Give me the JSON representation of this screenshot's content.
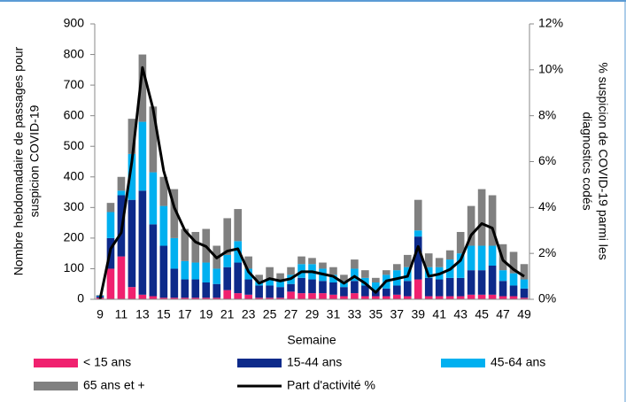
{
  "chart_data": {
    "type": "bar",
    "x_label": "Semaine",
    "y_label": [
      "Nombre hebdomadaire de passages pour",
      "suspicion COVID-19"
    ],
    "y2_label": [
      "% suspicion de COVID-19 parmi les",
      "diagnostics codés"
    ],
    "categories": [
      "9",
      null,
      "11",
      null,
      "13",
      null,
      "15",
      null,
      "17",
      null,
      "19",
      null,
      "21",
      null,
      "23",
      null,
      "25",
      null,
      "27",
      null,
      "29",
      null,
      "31",
      null,
      "33",
      null,
      "35",
      null,
      "37",
      null,
      "39",
      null,
      "41",
      null,
      "43",
      null,
      "45",
      null,
      "47",
      null,
      "49"
    ],
    "ylim": [
      0,
      900
    ],
    "yticks": [
      0,
      100,
      200,
      300,
      400,
      500,
      600,
      700,
      800,
      900
    ],
    "y2lim": [
      0,
      12
    ],
    "y2ticks": [
      {
        "value": 0,
        "label": "0%"
      },
      {
        "value": 2,
        "label": "2%"
      },
      {
        "value": 4,
        "label": "4%"
      },
      {
        "value": 6,
        "label": "6%"
      },
      {
        "value": 8,
        "label": "8%"
      },
      {
        "value": 10,
        "label": "10%"
      },
      {
        "value": 12,
        "label": "12%"
      }
    ],
    "series": [
      {
        "name": "< 15 ans",
        "color": "#f0216f",
        "values": [
          5,
          100,
          140,
          40,
          15,
          10,
          5,
          5,
          5,
          5,
          5,
          5,
          30,
          20,
          15,
          5,
          5,
          5,
          25,
          20,
          20,
          20,
          15,
          10,
          20,
          10,
          10,
          10,
          15,
          10,
          65,
          10,
          10,
          10,
          10,
          15,
          15,
          15,
          10,
          10,
          5
        ]
      },
      {
        "name": "15-44 ans",
        "color": "#0d2a8a",
        "values": [
          5,
          100,
          200,
          285,
          340,
          235,
          170,
          95,
          60,
          60,
          50,
          45,
          75,
          100,
          50,
          40,
          40,
          35,
          25,
          50,
          45,
          40,
          40,
          30,
          40,
          35,
          20,
          25,
          30,
          50,
          140,
          60,
          55,
          60,
          60,
          80,
          80,
          95,
          50,
          35,
          30
        ]
      },
      {
        "name": "45-64 ans",
        "color": "#00b0f0",
        "values": [
          2,
          85,
          15,
          150,
          225,
          170,
          130,
          100,
          60,
          55,
          65,
          50,
          40,
          70,
          35,
          15,
          20,
          25,
          30,
          45,
          50,
          40,
          25,
          20,
          40,
          25,
          25,
          45,
          50,
          45,
          20,
          35,
          40,
          60,
          80,
          80,
          80,
          65,
          35,
          40,
          30
        ]
      },
      {
        "name": "65 ans et +",
        "color": "#808080",
        "values": [
          2,
          30,
          45,
          115,
          220,
          215,
          95,
          160,
          105,
          100,
          110,
          75,
          120,
          105,
          40,
          20,
          40,
          20,
          25,
          25,
          20,
          20,
          25,
          20,
          30,
          25,
          15,
          15,
          20,
          40,
          100,
          45,
          30,
          30,
          70,
          130,
          185,
          165,
          85,
          70,
          50
        ]
      },
      {
        "name": "Part d'activité %",
        "color": "#000000",
        "axis": "y2",
        "type": "line",
        "values": [
          0,
          2.2,
          2.9,
          6.0,
          10.1,
          8.3,
          5.6,
          4.0,
          3.0,
          2.5,
          2.3,
          1.8,
          2.1,
          2.2,
          1.2,
          0.7,
          0.9,
          0.8,
          0.9,
          1.2,
          1.2,
          1.1,
          1.0,
          0.7,
          1.0,
          0.7,
          0.3,
          0.8,
          0.9,
          1.0,
          2.3,
          1.0,
          1.1,
          1.3,
          1.7,
          2.8,
          3.3,
          3.1,
          1.7,
          1.3,
          1.0
        ]
      }
    ]
  }
}
